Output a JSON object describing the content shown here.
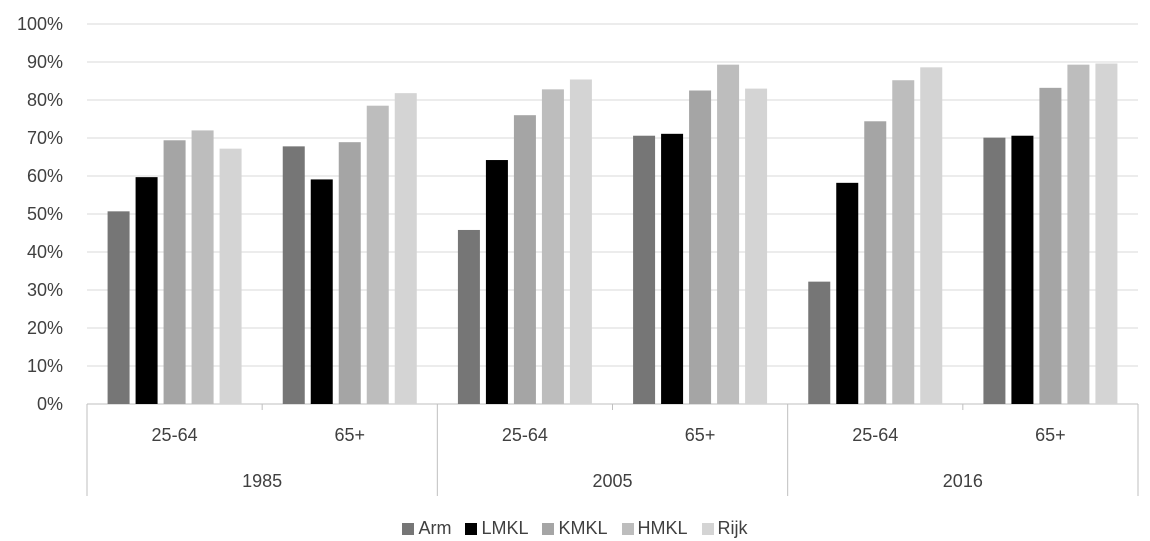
{
  "chart_data": {
    "type": "bar",
    "groups": [
      {
        "label": "1985",
        "categories": [
          "25-64",
          "65+"
        ]
      },
      {
        "label": "2005",
        "categories": [
          "25-64",
          "65+"
        ]
      },
      {
        "label": "2016",
        "categories": [
          "25-64",
          "65+"
        ]
      }
    ],
    "categories": [
      "1985 25-64",
      "1985 65+",
      "2005 25-64",
      "2005 65+",
      "2016 25-64",
      "2016 65+"
    ],
    "series": [
      {
        "name": "Arm",
        "color": "#767676",
        "values": [
          50.7,
          67.8,
          45.8,
          70.6,
          32.2,
          70.1
        ]
      },
      {
        "name": "LMKL",
        "color": "#000000",
        "values": [
          59.7,
          59.1,
          64.2,
          71.1,
          58.2,
          70.6
        ]
      },
      {
        "name": "KMKL",
        "color": "#a5a5a5",
        "values": [
          69.4,
          68.9,
          76.0,
          82.5,
          74.4,
          83.2
        ]
      },
      {
        "name": "HMKL",
        "color": "#bdbdbd",
        "values": [
          72.0,
          78.5,
          82.8,
          89.3,
          85.2,
          89.3
        ]
      },
      {
        "name": "Rijk",
        "color": "#d4d4d4",
        "values": [
          67.2,
          81.8,
          85.4,
          83.0,
          88.6,
          89.6
        ]
      }
    ],
    "y_ticks": [
      "0%",
      "10%",
      "20%",
      "30%",
      "40%",
      "50%",
      "60%",
      "70%",
      "80%",
      "90%",
      "100%"
    ],
    "ylim": [
      0,
      100
    ],
    "grid": true,
    "legend_position": "bottom"
  }
}
